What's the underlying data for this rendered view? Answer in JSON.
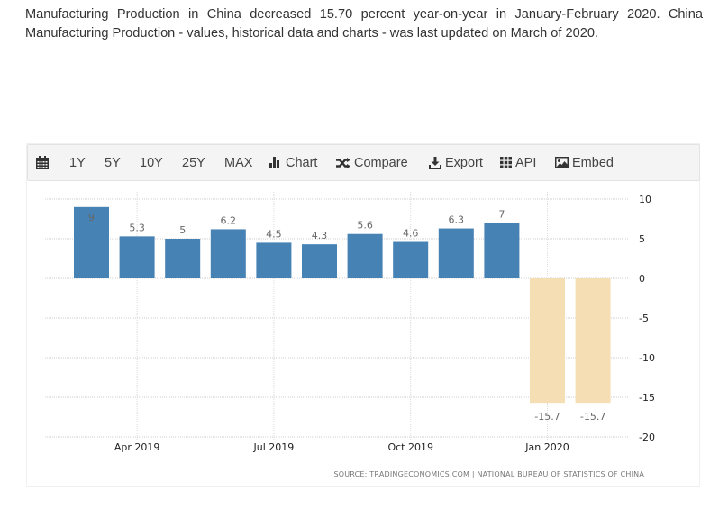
{
  "intro_text": "Manufacturing Production in China decreased 15.70 percent year-on-year in January-February 2020. China Manufacturing Production - values, historical data and charts - was last updated on March of 2020.",
  "toolbar": {
    "calendar_icon": "calendar-icon",
    "items": [
      {
        "label": "1Y"
      },
      {
        "label": "5Y"
      },
      {
        "label": "10Y"
      },
      {
        "label": "25Y"
      },
      {
        "label": "MAX"
      },
      {
        "label": "Chart",
        "icon": "bar-chart-icon"
      },
      {
        "label": "Compare",
        "icon": "shuffle-icon"
      },
      {
        "label": "Export",
        "icon": "download-icon"
      },
      {
        "label": "API",
        "icon": "grid-icon"
      },
      {
        "label": "Embed",
        "icon": "image-icon"
      }
    ]
  },
  "chart_data": {
    "type": "bar",
    "title": "",
    "xlabel": "",
    "ylabel": "",
    "ylim": [
      -20,
      10
    ],
    "yticks": [
      10,
      5,
      0,
      -5,
      -10,
      -15,
      -20
    ],
    "ytick_labels": [
      "10",
      "5",
      "0",
      "-5",
      "-10",
      "-15",
      "-20"
    ],
    "y_axis_side": "right",
    "grid": true,
    "categories": [
      "Mar 2019",
      "Apr 2019",
      "May 2019",
      "Jun 2019",
      "Jul 2019",
      "Aug 2019",
      "Sep 2019",
      "Oct 2019",
      "Nov 2019",
      "Dec 2019",
      "Jan 2020",
      "Feb 2020"
    ],
    "values": [
      9,
      5.3,
      5,
      6.2,
      4.5,
      4.3,
      5.6,
      4.6,
      6.3,
      7,
      -15.7,
      -15.7
    ],
    "data_labels": [
      "9",
      "5.3",
      "5",
      "6.2",
      "4.5",
      "4.3",
      "5.6",
      "4.6",
      "6.3",
      "7",
      "-15.7",
      "-15.7"
    ],
    "xtick_labels": [
      {
        "label": "Apr 2019",
        "category_index": 1
      },
      {
        "label": "Jul 2019",
        "category_index": 4
      },
      {
        "label": "Oct 2019",
        "category_index": 7
      },
      {
        "label": "Jan 2020",
        "category_index": 10
      }
    ],
    "colors": {
      "positive": "#4682b4",
      "forecast_negative": "#f5deb3"
    },
    "source": "SOURCE: TRADINGECONOMICS.COM | NATIONAL BUREAU OF STATISTICS OF CHINA"
  }
}
